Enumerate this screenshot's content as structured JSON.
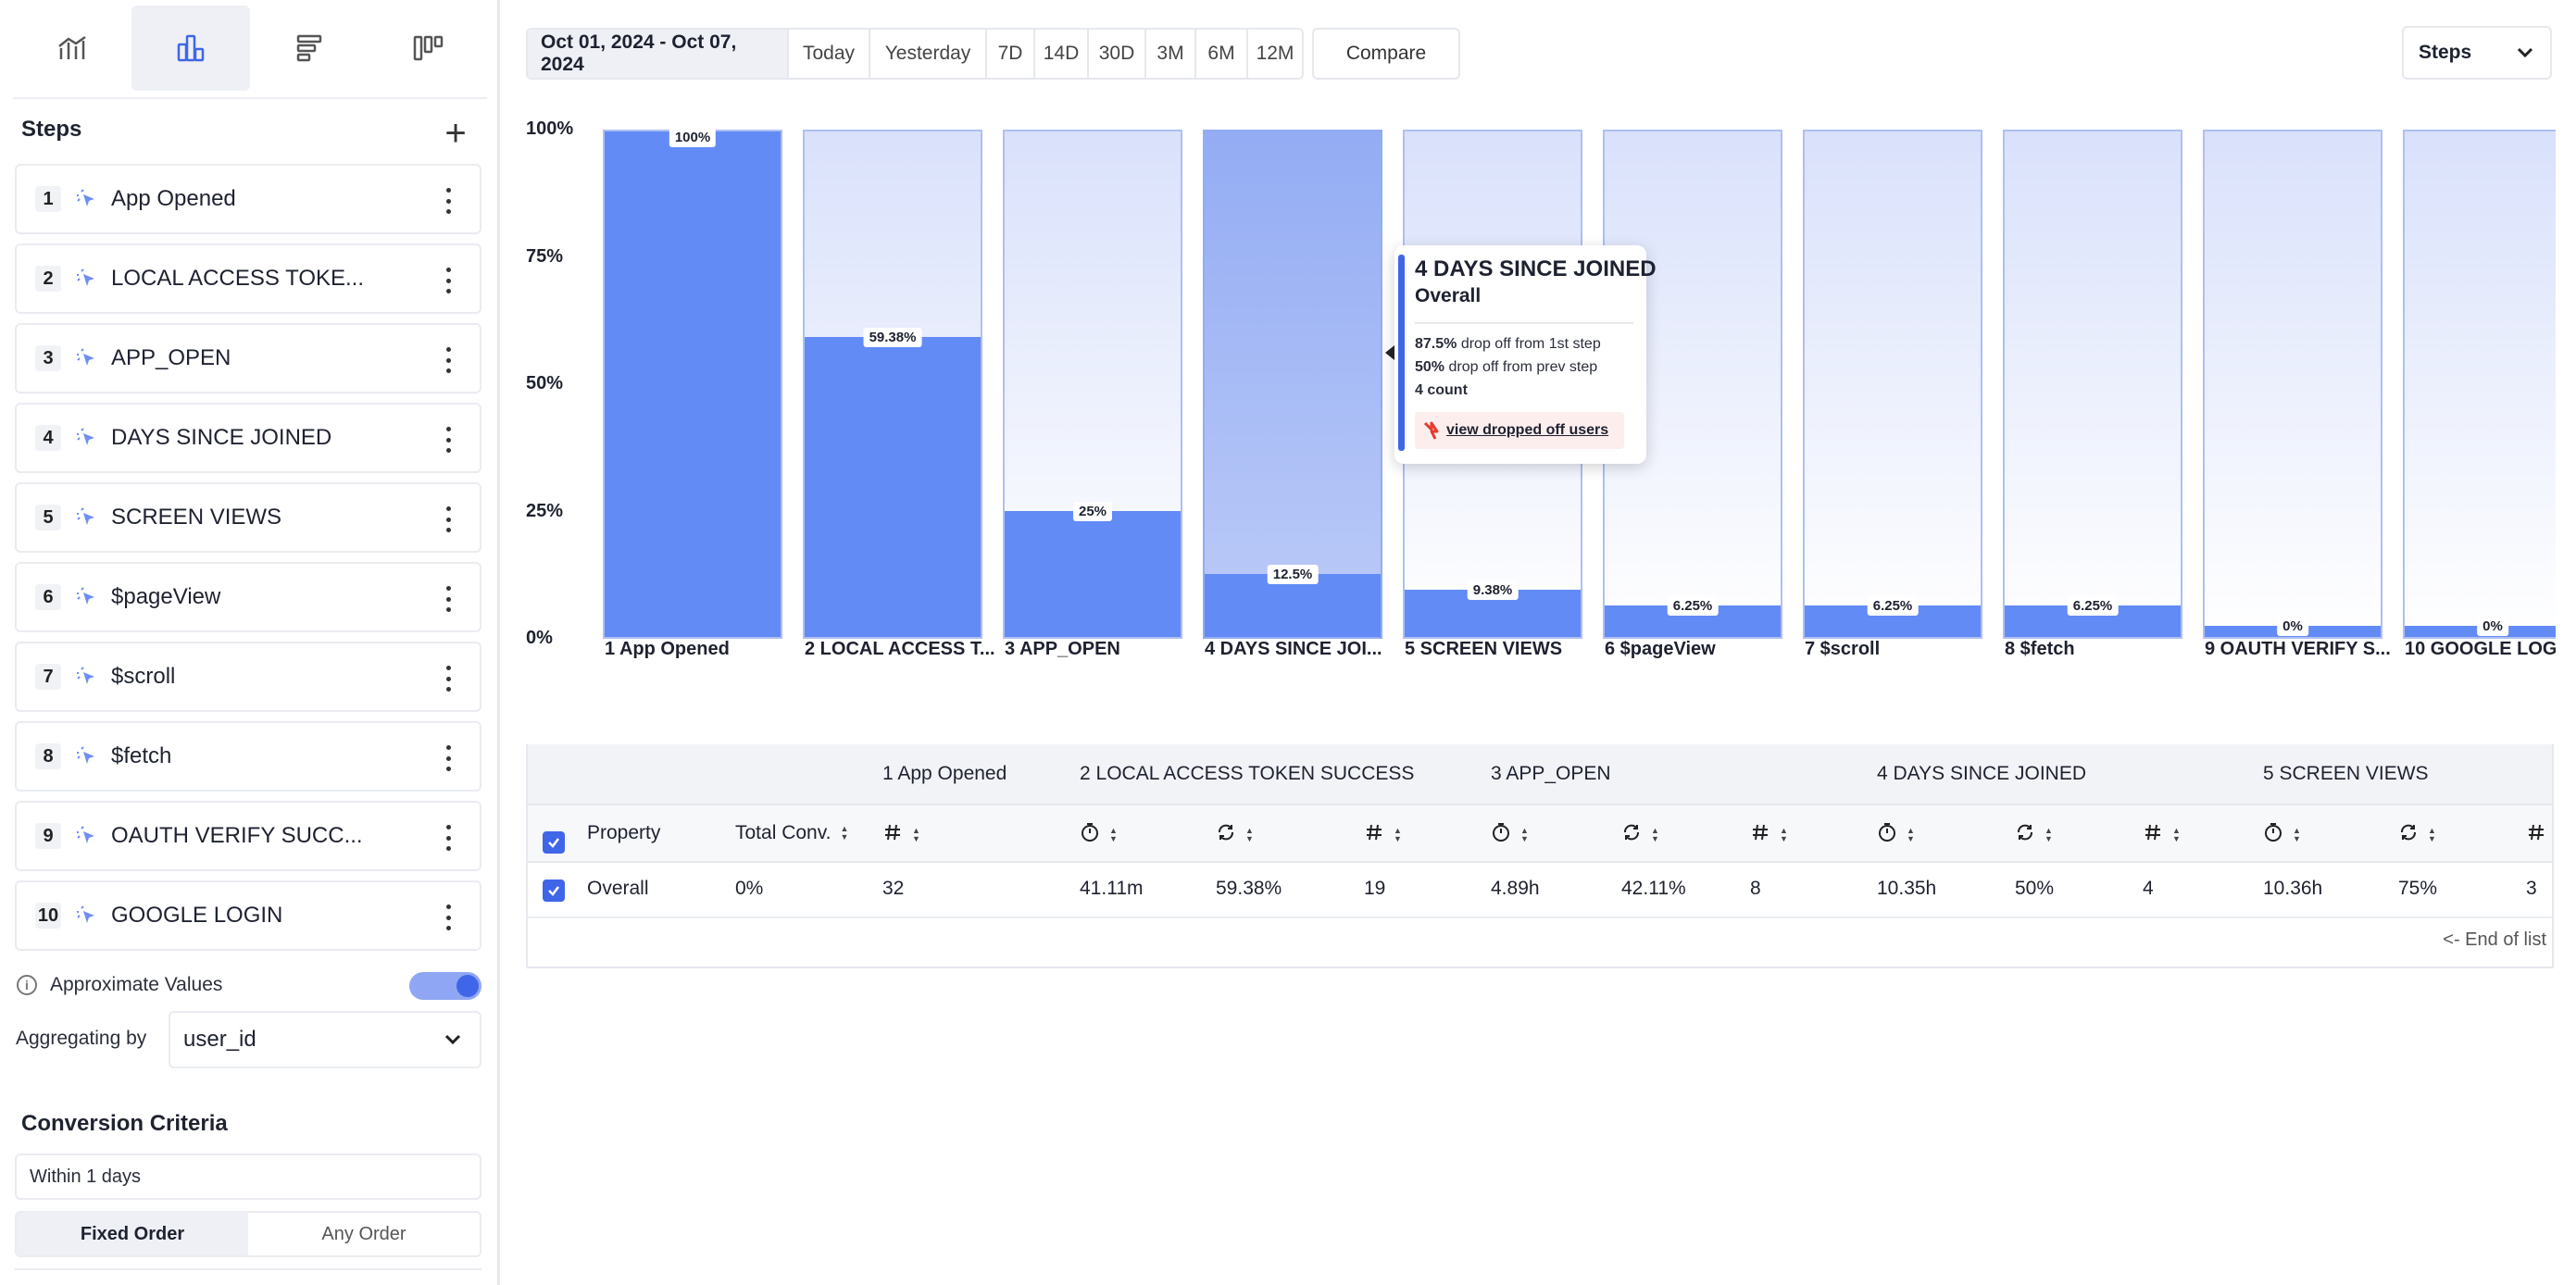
{
  "sidebar": {
    "view_tabs": [
      {
        "name": "trend-chart-icon"
      },
      {
        "name": "bar-chart-icon",
        "active": true
      },
      {
        "name": "horizontal-bars-icon"
      },
      {
        "name": "columns-icon"
      }
    ],
    "steps_title": "Steps",
    "add_step": "+",
    "steps": [
      {
        "num": "1",
        "label": "App Opened"
      },
      {
        "num": "2",
        "label": "LOCAL ACCESS TOKE..."
      },
      {
        "num": "3",
        "label": "APP_OPEN"
      },
      {
        "num": "4",
        "label": "DAYS SINCE JOINED"
      },
      {
        "num": "5",
        "label": "SCREEN VIEWS"
      },
      {
        "num": "6",
        "label": "$pageView"
      },
      {
        "num": "7",
        "label": "$scroll"
      },
      {
        "num": "8",
        "label": "$fetch"
      },
      {
        "num": "9",
        "label": "OAUTH VERIFY SUCC..."
      },
      {
        "num": "10",
        "label": "GOOGLE LOGIN"
      }
    ],
    "approx_label": "Approximate Values",
    "approx_on": true,
    "agg_label": "Aggregating by",
    "agg_value": "user_id",
    "conv_title": "Conversion Criteria",
    "within": "Within 1 days",
    "order_fixed": "Fixed Order",
    "order_any": "Any Order"
  },
  "topbar": {
    "range": "Oct 01, 2024 - Oct 07, 2024",
    "today": "Today",
    "yesterday": "Yesterday",
    "d7": "7D",
    "d14": "14D",
    "d30": "30D",
    "m3": "3M",
    "m6": "6M",
    "m12": "12M",
    "compare": "Compare",
    "steps_select": "Steps"
  },
  "chart_data": {
    "type": "bar",
    "y_ticks": [
      "100%",
      "75%",
      "50%",
      "25%",
      "0%"
    ],
    "ylim": [
      0,
      100
    ],
    "categories": [
      "1 App Opened",
      "2 LOCAL ACCESS T...",
      "3 APP_OPEN",
      "4 DAYS SINCE JOI...",
      "5 SCREEN VIEWS",
      "6 $pageView",
      "7 $scroll",
      "8 $fetch",
      "9 OAUTH VERIFY S...",
      "10 GOOGLE LOG"
    ],
    "values": [
      100,
      59.38,
      25,
      12.5,
      9.38,
      6.25,
      6.25,
      6.25,
      0,
      0
    ],
    "labels": [
      "100%",
      "59.38%",
      "25%",
      "12.5%",
      "9.38%",
      "6.25%",
      "6.25%",
      "6.25%",
      "0%",
      "0%"
    ],
    "highlighted_index": 3,
    "colors": {
      "fill": "#628bf6",
      "track": "#d9e1fb",
      "highlight": "#93acf3"
    }
  },
  "tooltip": {
    "title": "4 DAYS SINCE JOINED",
    "subtitle": "Overall",
    "first_value": "87.5%",
    "first_text": "drop off from 1st step",
    "prev_value": "50%",
    "prev_text": "drop off from prev step",
    "count": "4 count",
    "link": "view dropped off users"
  },
  "table": {
    "groups": [
      "1 App Opened",
      "2 LOCAL ACCESS TOKEN SUCCESS",
      "3 APP_OPEN",
      "4 DAYS SINCE JOINED",
      "5 SCREEN VIEWS"
    ],
    "col_property": "Property",
    "col_total": "Total Conv.",
    "row": {
      "property": "Overall",
      "total": "0%",
      "values": [
        "32",
        "41.11m",
        "59.38%",
        "19",
        "4.89h",
        "42.11%",
        "8",
        "10.35h",
        "50%",
        "4",
        "10.36h",
        "75%",
        "3"
      ]
    },
    "end_of_list": "<- End of list"
  }
}
